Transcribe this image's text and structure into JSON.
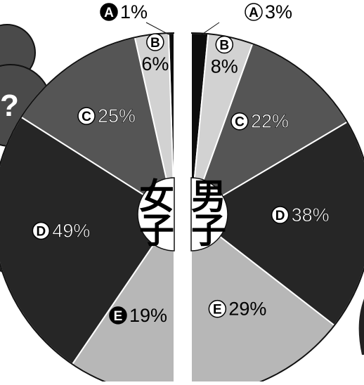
{
  "chart_data": {
    "type": "pie",
    "colors": {
      "A": "#0d0d0d",
      "B": "#d2d2d2",
      "C": "#555555",
      "D": "#262626",
      "E": "#b7b7b7",
      "bubble": "#4a4a4a"
    },
    "charts": [
      {
        "name": "女子",
        "side": "left",
        "slices": [
          {
            "label": "A",
            "value": 1,
            "value_label": "1%"
          },
          {
            "label": "B",
            "value": 6,
            "value_label": "6%"
          },
          {
            "label": "C",
            "value": 25,
            "value_label": "25%"
          },
          {
            "label": "D",
            "value": 49,
            "value_label": "49%"
          },
          {
            "label": "E",
            "value": 19,
            "value_label": "19%"
          }
        ]
      },
      {
        "name": "男子",
        "side": "right",
        "slices": [
          {
            "label": "A",
            "value": 3,
            "value_label": "3%"
          },
          {
            "label": "B",
            "value": 8,
            "value_label": "8%"
          },
          {
            "label": "C",
            "value": 22,
            "value_label": "22%"
          },
          {
            "label": "D",
            "value": 38,
            "value_label": "38%"
          },
          {
            "label": "E",
            "value": 29,
            "value_label": "29%"
          }
        ]
      }
    ]
  },
  "decor": {
    "bubble_mark": "?"
  }
}
